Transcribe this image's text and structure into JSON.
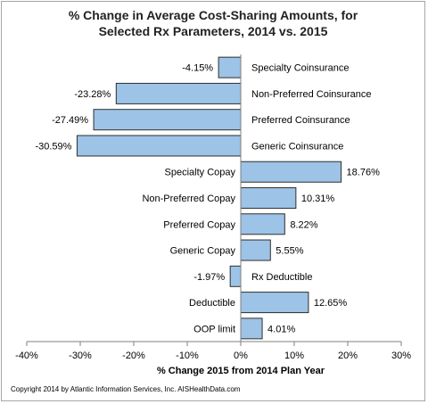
{
  "chart_data": {
    "type": "bar",
    "orientation": "horizontal",
    "title_lines": [
      "% Change in Average Cost-Sharing Amounts, for",
      "Selected Rx Parameters, 2014 vs. 2015"
    ],
    "categories": [
      "Specialty Coinsurance",
      "Non-Preferred Coinsurance",
      "Preferred Coinsurance",
      "Generic Coinsurance",
      "Specialty Copay",
      "Non-Preferred Copay",
      "Preferred Copay",
      "Generic Copay",
      "Rx Deductible",
      "Deductible",
      "OOP limit"
    ],
    "values": [
      -4.15,
      -23.28,
      -27.49,
      -30.59,
      18.76,
      10.31,
      8.22,
      5.55,
      -1.97,
      12.65,
      4.01
    ],
    "value_labels": [
      "-4.15%",
      "-23.28%",
      "-27.49%",
      "-30.59%",
      "18.76%",
      "10.31%",
      "8.22%",
      "5.55%",
      "-1.97%",
      "12.65%",
      "4.01%"
    ],
    "xlim": [
      -40,
      30
    ],
    "xticks": [
      -40,
      -30,
      -20,
      -10,
      0,
      10,
      20,
      30
    ],
    "xtick_labels": [
      "-40%",
      "-30%",
      "-20%",
      "-10%",
      "0%",
      "10%",
      "20%",
      "30%"
    ],
    "xlabel": "% Change 2015  from 2014  Plan Year",
    "ylabel": "",
    "grid": false,
    "legend": "none",
    "bar_color": "#9dc3e6",
    "bar_edge_color": "#2f2f2f"
  },
  "footer": {
    "copyright": "Copyright  2014 by Atlantic  Information Services, Inc.  AISHealthData.com"
  }
}
